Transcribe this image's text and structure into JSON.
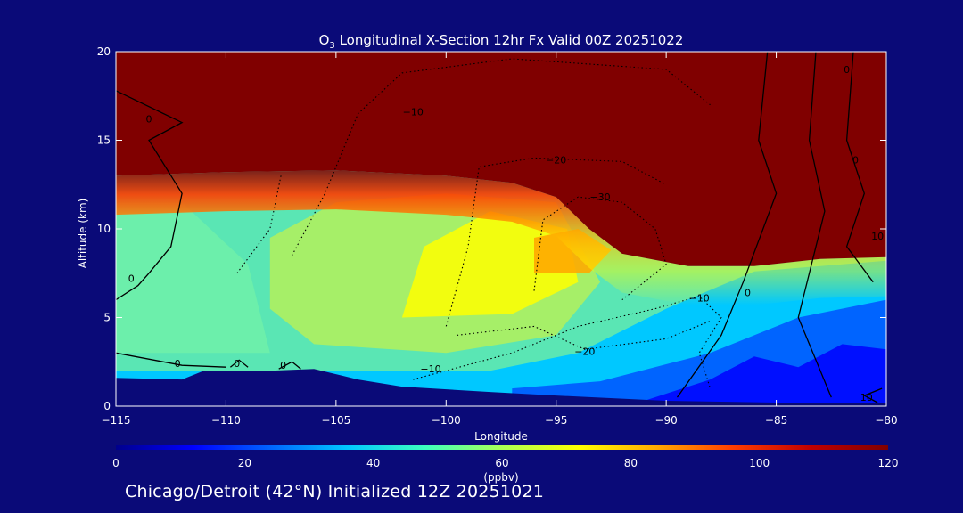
{
  "chart_data": {
    "type": "heatmap",
    "title_species": "O",
    "title_subscript": "3",
    "title_rest": " Longitudinal X-Section 12hr  Fx Valid 00Z 20251022",
    "xlabel": "Longitude",
    "ylabel": "Altitude (km)",
    "xlim": [
      -115,
      -80
    ],
    "ylim": [
      0,
      20
    ],
    "x_ticks": [
      -115,
      -110,
      -105,
      -100,
      -95,
      -90,
      -85,
      -80
    ],
    "x_tick_labels": [
      "−115",
      "−110",
      "−105",
      "−100",
      "−95",
      "−90",
      "−85",
      "−80"
    ],
    "y_ticks": [
      0,
      5,
      10,
      15,
      20
    ],
    "y_tick_labels": [
      "0",
      "5",
      "10",
      "15",
      "20"
    ],
    "colorbar": {
      "min": 0,
      "max": 120,
      "ticks": [
        0,
        20,
        40,
        60,
        80,
        100,
        120
      ],
      "tick_labels": [
        "0",
        "20",
        "40",
        "60",
        "80",
        "100",
        "120"
      ],
      "units": "(ppbv)",
      "colors": [
        "#00008c",
        "#0000ff",
        "#0064ff",
        "#00c8ff",
        "#3cffbe",
        "#aaff55",
        "#ffff00",
        "#ffaa00",
        "#ff3c00",
        "#c00000",
        "#800000"
      ]
    },
    "stratosphere_interface_km": [
      [
        -115,
        13.0
      ],
      [
        -110,
        13.2
      ],
      [
        -105,
        13.3
      ],
      [
        -100,
        13.0
      ],
      [
        -97,
        12.6
      ],
      [
        -95,
        11.8
      ],
      [
        -93.5,
        10.0
      ],
      [
        -92,
        8.6
      ],
      [
        -89,
        7.9
      ],
      [
        -86,
        7.9
      ],
      [
        -83,
        8.3
      ],
      [
        -80,
        8.4
      ]
    ],
    "terrain_km": [
      [
        -115,
        1.6
      ],
      [
        -112,
        1.5
      ],
      [
        -111,
        2.0
      ],
      [
        -108,
        2.0
      ],
      [
        -106,
        2.1
      ],
      [
        -104,
        1.5
      ],
      [
        -102,
        1.1
      ],
      [
        -98,
        0.8
      ],
      [
        -95,
        0.6
      ],
      [
        -90,
        0.3
      ],
      [
        -85,
        0.2
      ],
      [
        -80,
        0.15
      ]
    ],
    "contours": {
      "solid_values": [
        0,
        10
      ],
      "dotted_values": [
        -10,
        -20,
        -30
      ],
      "labels": [
        {
          "text": "0",
          "lon": -113.5,
          "alt": 16.2
        },
        {
          "text": "0",
          "lon": -114.3,
          "alt": 7.2
        },
        {
          "text": "0",
          "lon": -112.2,
          "alt": 2.4
        },
        {
          "text": "0",
          "lon": -109.5,
          "alt": 2.4
        },
        {
          "text": "0",
          "lon": -107.4,
          "alt": 2.3
        },
        {
          "text": "0",
          "lon": -86.3,
          "alt": 6.4
        },
        {
          "text": "0",
          "lon": -81.8,
          "alt": 19.0
        },
        {
          "text": "0",
          "lon": -81.4,
          "alt": 13.9
        },
        {
          "text": "−10",
          "lon": -100.7,
          "alt": 2.1
        },
        {
          "text": "−10",
          "lon": -101.5,
          "alt": 16.6
        },
        {
          "text": "−10",
          "lon": -88.5,
          "alt": 6.1
        },
        {
          "text": "−20",
          "lon": -95.0,
          "alt": 13.9
        },
        {
          "text": "−20",
          "lon": -93.7,
          "alt": 3.1
        },
        {
          "text": "−30",
          "lon": -93.0,
          "alt": 11.8
        },
        {
          "text": "10",
          "lon": -80.4,
          "alt": 9.6
        },
        {
          "text": "10",
          "lon": -80.9,
          "alt": 0.5
        }
      ]
    }
  },
  "footer": {
    "caption": "Chicago/Detroit (42°N) Initialized 12Z 20251021"
  }
}
